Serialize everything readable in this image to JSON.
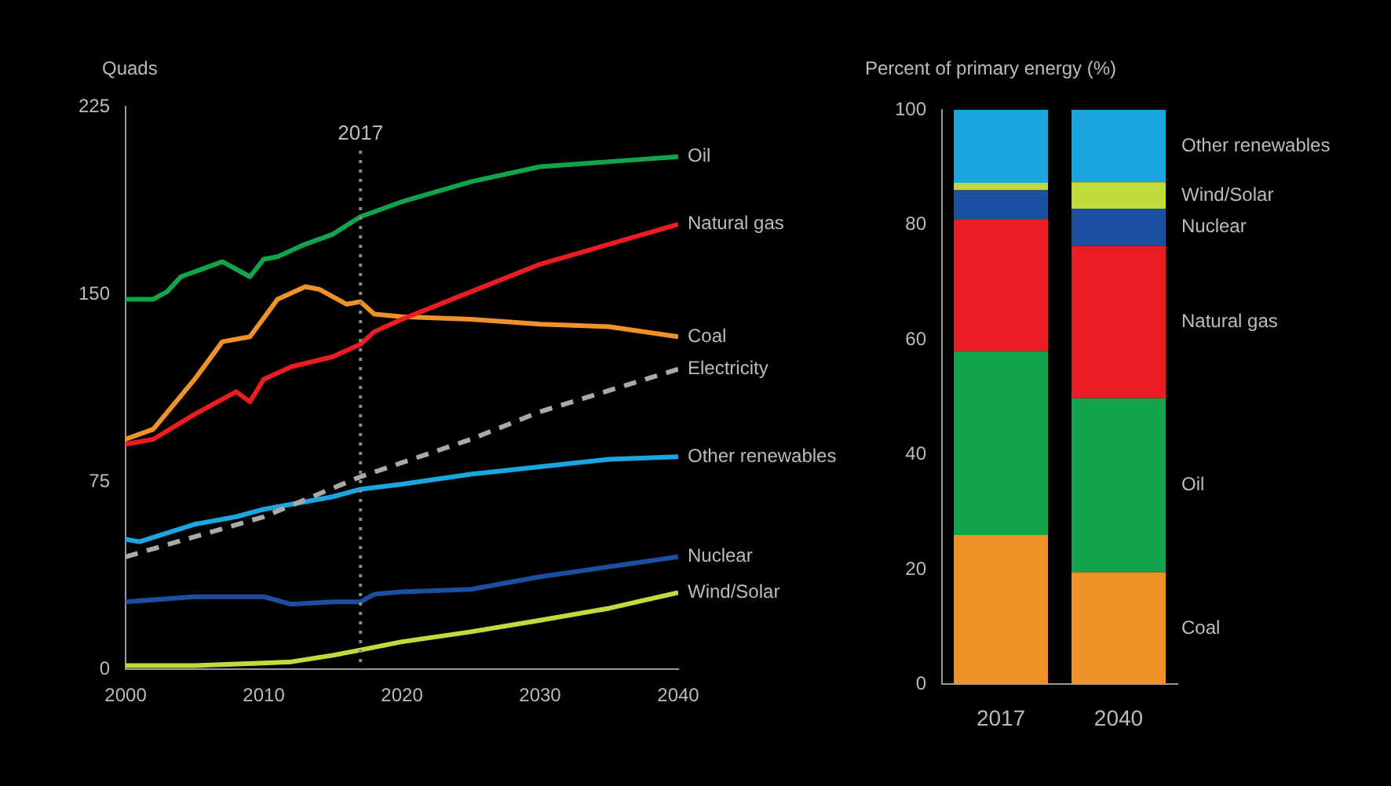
{
  "chart_data": [
    {
      "type": "line",
      "ylabel": "Quads",
      "xlim": [
        2000,
        2040
      ],
      "xticks": [
        2000,
        2010,
        2020,
        2030,
        2040
      ],
      "ylim": [
        0,
        225
      ],
      "yticks": [
        0,
        75,
        150,
        225
      ],
      "grid": false,
      "legend": false,
      "marker": "none",
      "ref_lines": [
        {
          "axis": "x",
          "value": 2017,
          "label": "2017",
          "line_style": "dotted",
          "color": "#888888"
        }
      ],
      "series": [
        {
          "name": "Oil",
          "color": "#12a44a",
          "x": [
            2000,
            2002,
            2003,
            2004,
            2007,
            2009,
            2010,
            2011,
            2013,
            2015,
            2017,
            2020,
            2025,
            2030,
            2035,
            2040
          ],
          "values": [
            148,
            148,
            151,
            157,
            163,
            157,
            164,
            165,
            170,
            174,
            181,
            187,
            195,
            201,
            203,
            205
          ]
        },
        {
          "name": "Natural gas",
          "color": "#ec1c24",
          "x": [
            2000,
            2002,
            2005,
            2008,
            2009,
            2010,
            2012,
            2015,
            2017,
            2018,
            2020,
            2025,
            2030,
            2035,
            2040
          ],
          "values": [
            90,
            92,
            102,
            111,
            107,
            116,
            121,
            125,
            130,
            135,
            140,
            151,
            162,
            170,
            178
          ]
        },
        {
          "name": "Coal",
          "color": "#f0922a",
          "x": [
            2000,
            2002,
            2005,
            2007,
            2009,
            2011,
            2013,
            2014,
            2016,
            2017,
            2018,
            2020,
            2025,
            2030,
            2035,
            2040
          ],
          "values": [
            92,
            96,
            116,
            131,
            133,
            148,
            153,
            152,
            146,
            147,
            142,
            141,
            140,
            138,
            137,
            133
          ]
        },
        {
          "name": "Electricity",
          "color": "#aaaaaa",
          "line_style": "dashed",
          "x": [
            2000,
            2010,
            2017,
            2025,
            2030,
            2040
          ],
          "values": [
            45,
            61,
            77,
            92,
            103,
            120
          ]
        },
        {
          "name": "Other renewables",
          "color": "#1ba6e0",
          "x": [
            2000,
            2001,
            2005,
            2008,
            2010,
            2015,
            2017,
            2020,
            2025,
            2030,
            2035,
            2040
          ],
          "values": [
            52,
            51,
            58,
            61,
            64,
            69,
            72,
            74,
            78,
            81,
            84,
            85
          ]
        },
        {
          "name": "Nuclear",
          "color": "#1d4fa0",
          "x": [
            2000,
            2005,
            2010,
            2012,
            2015,
            2017,
            2018,
            2020,
            2025,
            2030,
            2035,
            2040
          ],
          "values": [
            27,
            29,
            29,
            26,
            27,
            27,
            30,
            31,
            32,
            37,
            41,
            45
          ]
        },
        {
          "name": "Wind/Solar",
          "color": "#bfdc3c",
          "x": [
            2000,
            2005,
            2010,
            2012,
            2015,
            2017,
            2020,
            2025,
            2030,
            2035,
            2040
          ],
          "values": [
            1.5,
            1.5,
            2.5,
            3,
            5.6,
            7.7,
            11,
            15,
            19.6,
            24.4,
            30.7
          ]
        }
      ]
    },
    {
      "type": "bar",
      "stacked": true,
      "ylabel": "Percent of primary energy (%)",
      "categories": [
        "2017",
        "2040"
      ],
      "ylim": [
        0,
        100
      ],
      "yticks": [
        0,
        20,
        40,
        60,
        80,
        100
      ],
      "grid": false,
      "legend": false,
      "series": [
        {
          "name": "Coal",
          "color": "#f0922a",
          "values": [
            26,
            19.5
          ]
        },
        {
          "name": "Oil",
          "color": "#12a44a",
          "values": [
            32,
            30.3
          ]
        },
        {
          "name": "Natural gas",
          "color": "#ec1c24",
          "values": [
            23,
            26.5
          ]
        },
        {
          "name": "Nuclear",
          "color": "#1d4fa0",
          "values": [
            5,
            6.5
          ]
        },
        {
          "name": "Wind/Solar",
          "color": "#bfdc3c",
          "values": [
            1.3,
            4.6
          ]
        },
        {
          "name": "Other renewables",
          "color": "#1ba6e0",
          "values": [
            12.7,
            12.6
          ]
        }
      ]
    }
  ]
}
